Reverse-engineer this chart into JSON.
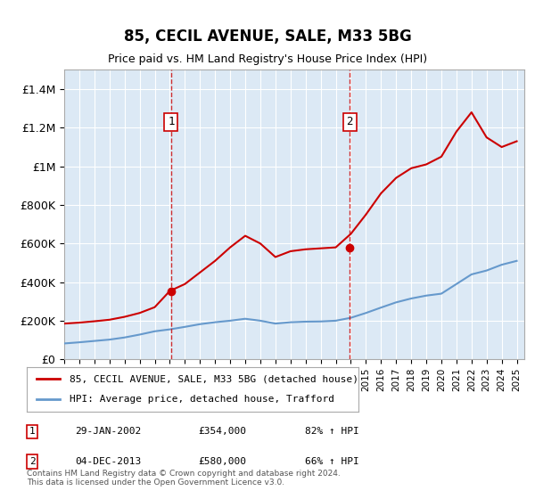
{
  "title": "85, CECIL AVENUE, SALE, M33 5BG",
  "subtitle": "Price paid vs. HM Land Registry's House Price Index (HPI)",
  "legend_line1": "85, CECIL AVENUE, SALE, M33 5BG (detached house)",
  "legend_line2": "HPI: Average price, detached house, Trafford",
  "footnote": "Contains HM Land Registry data © Crown copyright and database right 2024.\nThis data is licensed under the Open Government Licence v3.0.",
  "sale1_date": "29-JAN-2002",
  "sale1_price": 354000,
  "sale1_hpi": "82% ↑ HPI",
  "sale1_label": "1",
  "sale2_date": "04-DEC-2013",
  "sale2_price": 580000,
  "sale2_hpi": "66% ↑ HPI",
  "sale2_label": "2",
  "ylim": [
    0,
    1500000
  ],
  "yticks": [
    0,
    200000,
    400000,
    600000,
    800000,
    1000000,
    1200000,
    1400000
  ],
  "ytick_labels": [
    "£0",
    "£200K",
    "£400K",
    "£600K",
    "£800K",
    "£1M",
    "£1.2M",
    "£1.4M"
  ],
  "background_color": "#dce9f5",
  "plot_bg": "#dce9f5",
  "red_color": "#cc0000",
  "blue_color": "#6699cc",
  "grid_color": "#ffffff",
  "sale1_x": 2002.08,
  "sale2_x": 2013.92,
  "hpi_years": [
    1995,
    1996,
    1997,
    1998,
    1999,
    2000,
    2001,
    2002,
    2003,
    2004,
    2005,
    2006,
    2007,
    2008,
    2009,
    2010,
    2011,
    2012,
    2013,
    2014,
    2015,
    2016,
    2017,
    2018,
    2019,
    2020,
    2021,
    2022,
    2023,
    2024,
    2025
  ],
  "hpi_values": [
    82000,
    88000,
    95000,
    102000,
    113000,
    128000,
    145000,
    155000,
    168000,
    182000,
    192000,
    200000,
    210000,
    200000,
    185000,
    192000,
    195000,
    196000,
    200000,
    215000,
    240000,
    268000,
    295000,
    315000,
    330000,
    340000,
    390000,
    440000,
    460000,
    490000,
    510000
  ],
  "red_years": [
    1995,
    1996,
    1997,
    1998,
    1999,
    2000,
    2001,
    2002,
    2003,
    2004,
    2005,
    2006,
    2007,
    2008,
    2009,
    2010,
    2011,
    2012,
    2013,
    2014,
    2015,
    2016,
    2017,
    2018,
    2019,
    2020,
    2021,
    2022,
    2023,
    2024,
    2025
  ],
  "red_values": [
    185000,
    190000,
    197000,
    205000,
    220000,
    240000,
    270000,
    354000,
    390000,
    450000,
    510000,
    580000,
    640000,
    600000,
    530000,
    560000,
    570000,
    575000,
    580000,
    650000,
    750000,
    860000,
    940000,
    990000,
    1010000,
    1050000,
    1180000,
    1280000,
    1150000,
    1100000,
    1130000
  ]
}
